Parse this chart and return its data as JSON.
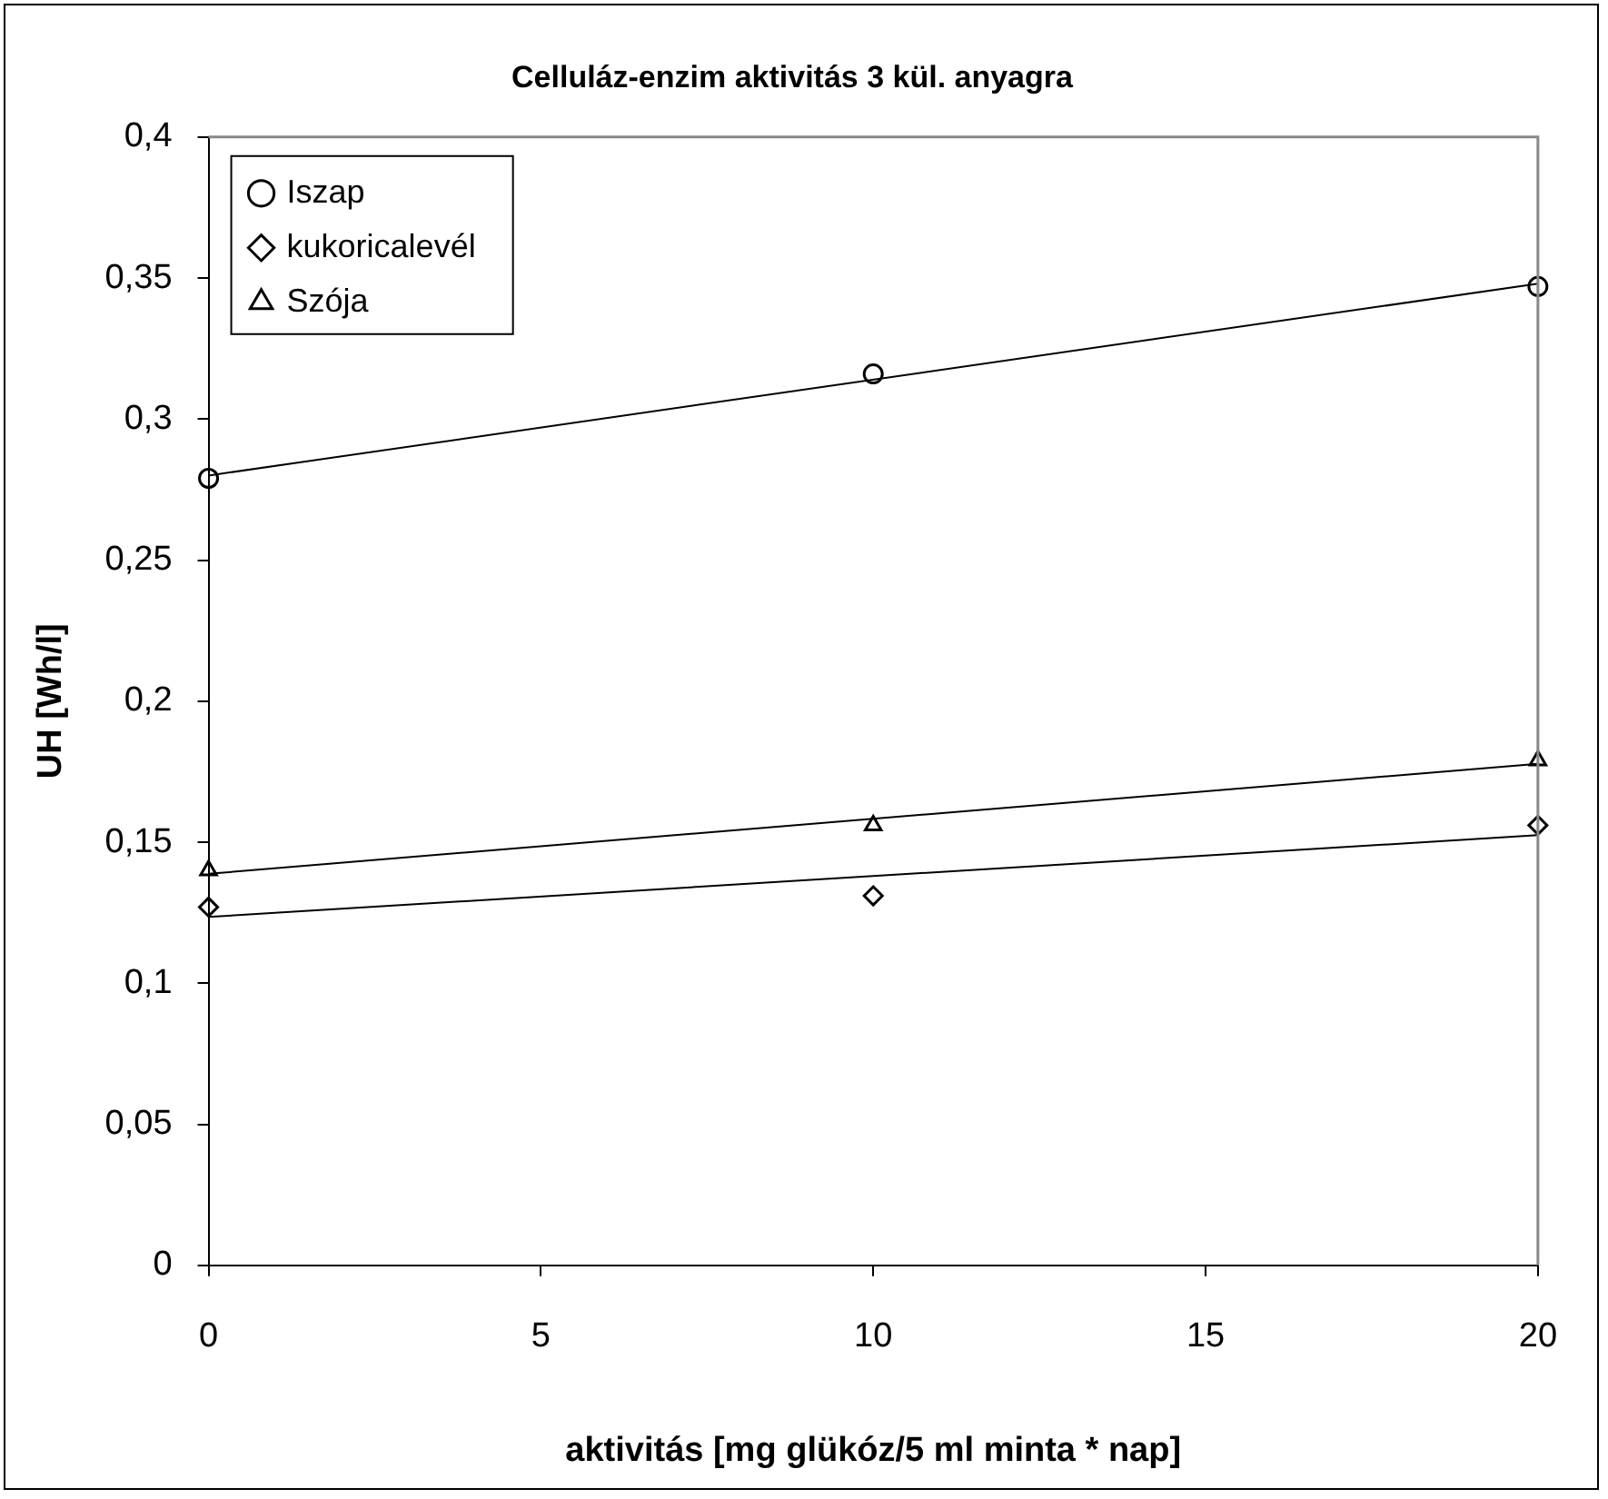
{
  "chart_data": {
    "type": "scatter",
    "title": "Celluláz-enzim aktivitás 3 kül. anyagra",
    "xlabel": "aktivitás [mg glükóz/5 ml minta * nap]",
    "ylabel": "UH [Wh/l]",
    "series": [
      {
        "name": "Iszap",
        "color": "#000000",
        "marker": "circle",
        "x": [
          0,
          10,
          20
        ],
        "values": [
          0.279,
          0.316,
          0.347
        ]
      },
      {
        "name": "kukoricalevél",
        "color": "#000000",
        "marker": "diamond",
        "x": [
          0,
          10,
          20
        ],
        "values": [
          0.127,
          0.131,
          0.156
        ]
      },
      {
        "name": "Szója",
        "color": "#000000",
        "marker": "triangle",
        "x": [
          0,
          10,
          20
        ],
        "values": [
          0.14,
          0.156,
          0.179
        ]
      },
      {
        "type": "line",
        "color": "#000000",
        "marker": "none",
        "x": [
          0,
          20
        ],
        "values": [
          0.28,
          0.348
        ]
      },
      {
        "type": "line",
        "color": "#000000",
        "marker": "none",
        "x": [
          0,
          20
        ],
        "values": [
          0.1235,
          0.1525
        ]
      },
      {
        "type": "line",
        "color": "#000000",
        "marker": "none",
        "x": [
          0,
          20
        ],
        "values": [
          0.1388,
          0.1778
        ]
      }
    ],
    "xlim": [
      0,
      20
    ],
    "xticks": [
      0,
      5,
      10,
      15,
      20
    ],
    "ylim": [
      0,
      0.4
    ],
    "yticks": [
      0,
      {
        "value": 0.05,
        "label": "0,05"
      },
      {
        "value": 0.1,
        "label": "0,1"
      },
      {
        "value": 0.15,
        "label": "0,15"
      },
      {
        "value": 0.2,
        "label": "0,2"
      },
      {
        "value": 0.25,
        "label": "0,25"
      },
      {
        "value": 0.3,
        "label": "0,3"
      },
      {
        "value": 0.35,
        "label": "0,35"
      },
      {
        "value": 0.4,
        "label": "0,4"
      }
    ],
    "grid": false,
    "legend": "top left"
  }
}
